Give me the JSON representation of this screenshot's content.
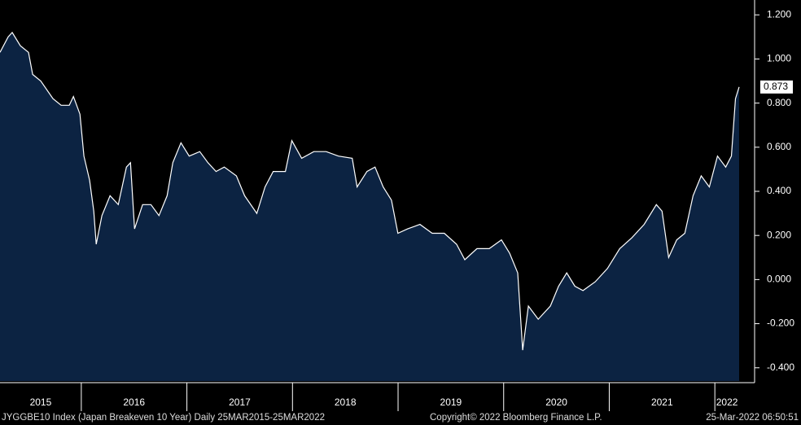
{
  "chart_data": {
    "type": "area",
    "color": "#0c2342",
    "line_color": "#ffffff",
    "footer": [
      "JYGGBE10 Index (Japan Breakeven 10 Year)  Daily 25MAR2015-25MAR2022",
      "Copyright© 2022 Bloomberg Finance L.P.",
      "25-Mar-2022 06:50:51"
    ],
    "xlim": [
      2015.23,
      2022.23
    ],
    "xticks": [
      {
        "value": 2015,
        "label": "2015"
      },
      {
        "value": 2016,
        "label": "2016"
      },
      {
        "value": 2017,
        "label": "2017"
      },
      {
        "value": 2018,
        "label": "2018"
      },
      {
        "value": 2019,
        "label": "2019"
      },
      {
        "value": 2020,
        "label": "2020"
      },
      {
        "value": 2021,
        "label": "2021"
      },
      {
        "value": 2022,
        "label": "2022"
      }
    ],
    "ylim": [
      -0.46,
      1.26
    ],
    "yticks": [
      {
        "value": 1.2,
        "label": "1.200"
      },
      {
        "value": 1.0,
        "label": "1.000"
      },
      {
        "value": 0.8,
        "label": "0.800"
      },
      {
        "value": 0.6,
        "label": "0.600"
      },
      {
        "value": 0.4,
        "label": "0.400"
      },
      {
        "value": 0.2,
        "label": "0.200"
      },
      {
        "value": 0,
        "label": "0.000"
      },
      {
        "value": -0.2,
        "label": "-0.200"
      },
      {
        "value": -0.4,
        "label": "-0.400"
      }
    ],
    "x": [
      2015.23,
      2015.307,
      2015.346,
      2015.423,
      2015.5,
      2015.539,
      2015.616,
      2015.732,
      2015.809,
      2015.886,
      2015.925,
      2015.987,
      2016.025,
      2016.079,
      2016.118,
      2016.141,
      2016.195,
      2016.272,
      2016.35,
      2016.427,
      2016.466,
      2016.504,
      2016.581,
      2016.659,
      2016.736,
      2016.813,
      2016.867,
      2016.944,
      2017.022,
      2017.122,
      2017.199,
      2017.276,
      2017.354,
      2017.469,
      2017.547,
      2017.662,
      2017.74,
      2017.817,
      2017.933,
      2017.994,
      2018.087,
      2018.203,
      2018.319,
      2018.435,
      2018.566,
      2018.612,
      2018.705,
      2018.782,
      2018.859,
      2018.937,
      2018.998,
      2019.091,
      2019.207,
      2019.323,
      2019.438,
      2019.554,
      2019.632,
      2019.747,
      2019.863,
      2019.979,
      2020.056,
      2020.133,
      2020.18,
      2020.234,
      2020.327,
      2020.442,
      2020.52,
      2020.597,
      2020.674,
      2020.751,
      2020.867,
      2020.983,
      2021.099,
      2021.215,
      2021.33,
      2021.446,
      2021.5,
      2021.562,
      2021.639,
      2021.716,
      2021.794,
      2021.871,
      2021.948,
      2022.025,
      2022.103,
      2022.157,
      2022.195,
      2022.23
    ],
    "values": [
      1.03,
      1.1,
      1.12,
      1.06,
      1.03,
      0.93,
      0.9,
      0.82,
      0.79,
      0.79,
      0.83,
      0.75,
      0.56,
      0.45,
      0.31,
      0.16,
      0.29,
      0.38,
      0.34,
      0.51,
      0.53,
      0.23,
      0.34,
      0.34,
      0.29,
      0.38,
      0.53,
      0.62,
      0.56,
      0.58,
      0.53,
      0.49,
      0.51,
      0.47,
      0.38,
      0.3,
      0.42,
      0.49,
      0.49,
      0.63,
      0.55,
      0.58,
      0.58,
      0.56,
      0.55,
      0.42,
      0.49,
      0.51,
      0.42,
      0.36,
      0.21,
      0.23,
      0.25,
      0.21,
      0.21,
      0.16,
      0.09,
      0.14,
      0.14,
      0.18,
      0.12,
      0.03,
      -0.32,
      -0.12,
      -0.18,
      -0.12,
      -0.03,
      0.03,
      -0.03,
      -0.05,
      -0.01,
      0.05,
      0.14,
      0.19,
      0.25,
      0.34,
      0.31,
      0.1,
      0.18,
      0.21,
      0.38,
      0.47,
      0.42,
      0.56,
      0.51,
      0.56,
      0.82,
      0.873
    ]
  }
}
